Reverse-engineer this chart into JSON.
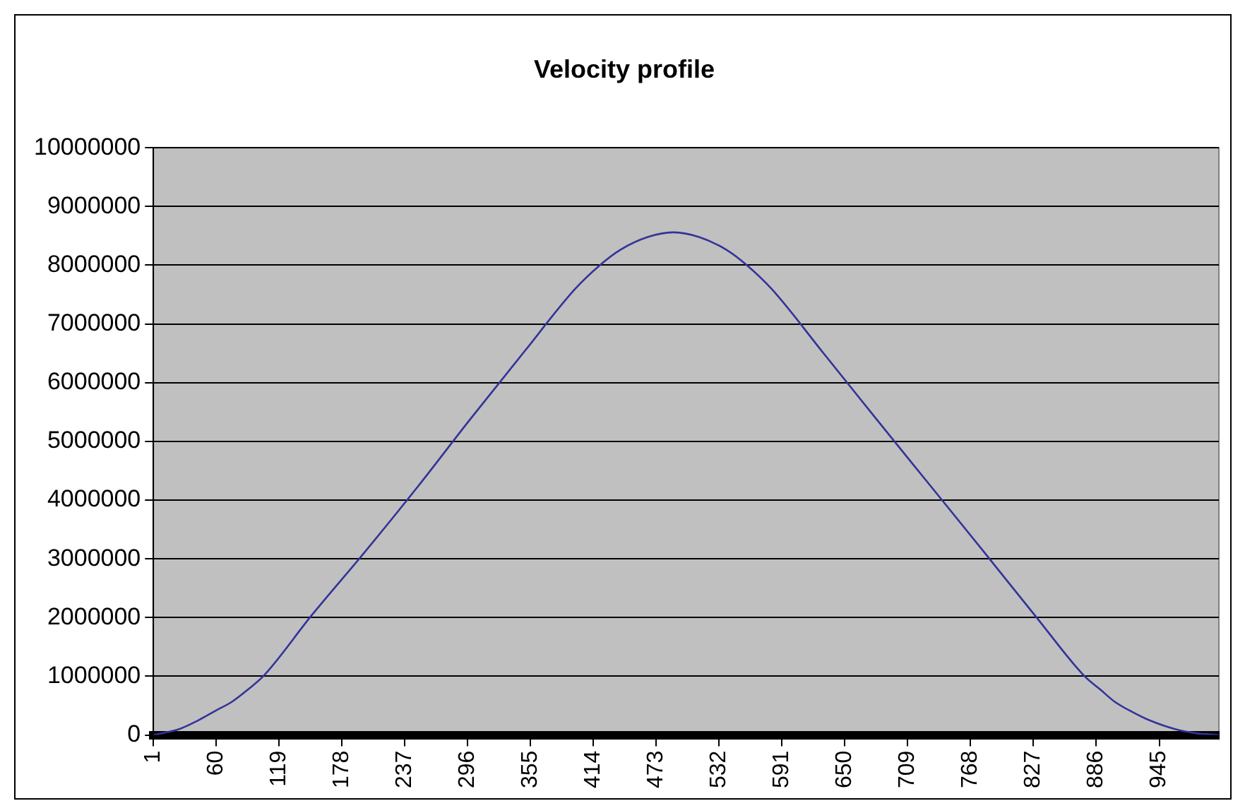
{
  "chart_data": {
    "type": "line",
    "title": "Velocity profile",
    "x": [
      1,
      25,
      43,
      60,
      75,
      90,
      104,
      150,
      200,
      250,
      298,
      350,
      397,
      420,
      439,
      465,
      489,
      513,
      539,
      558,
      581,
      630,
      680,
      730,
      780,
      830,
      875,
      890,
      903,
      920,
      936,
      960,
      980,
      1001
    ],
    "series": [
      {
        "color": "#333399",
        "values": [
          0,
          100000,
          250000,
          420000,
          570000,
          780000,
          1000000,
          2050000,
          3130000,
          4250000,
          5370000,
          6550000,
          7600000,
          8000000,
          8260000,
          8480000,
          8560000,
          8480000,
          8260000,
          8000000,
          7600000,
          6500000,
          5370000,
          4250000,
          3130000,
          2000000,
          1000000,
          770000,
          570000,
          390000,
          250000,
          100000,
          30000,
          0
        ]
      }
    ],
    "xlim": [
      1,
      1001
    ],
    "xticks": [
      1,
      60,
      119,
      178,
      237,
      296,
      355,
      414,
      473,
      532,
      591,
      650,
      709,
      768,
      827,
      886,
      945
    ],
    "ylim": [
      0,
      10000000
    ],
    "yticks": [
      0,
      1000000,
      2000000,
      3000000,
      4000000,
      5000000,
      6000000,
      7000000,
      8000000,
      9000000,
      10000000
    ],
    "grid": "y",
    "legend": false,
    "marker": "none",
    "line_style": "solid"
  }
}
